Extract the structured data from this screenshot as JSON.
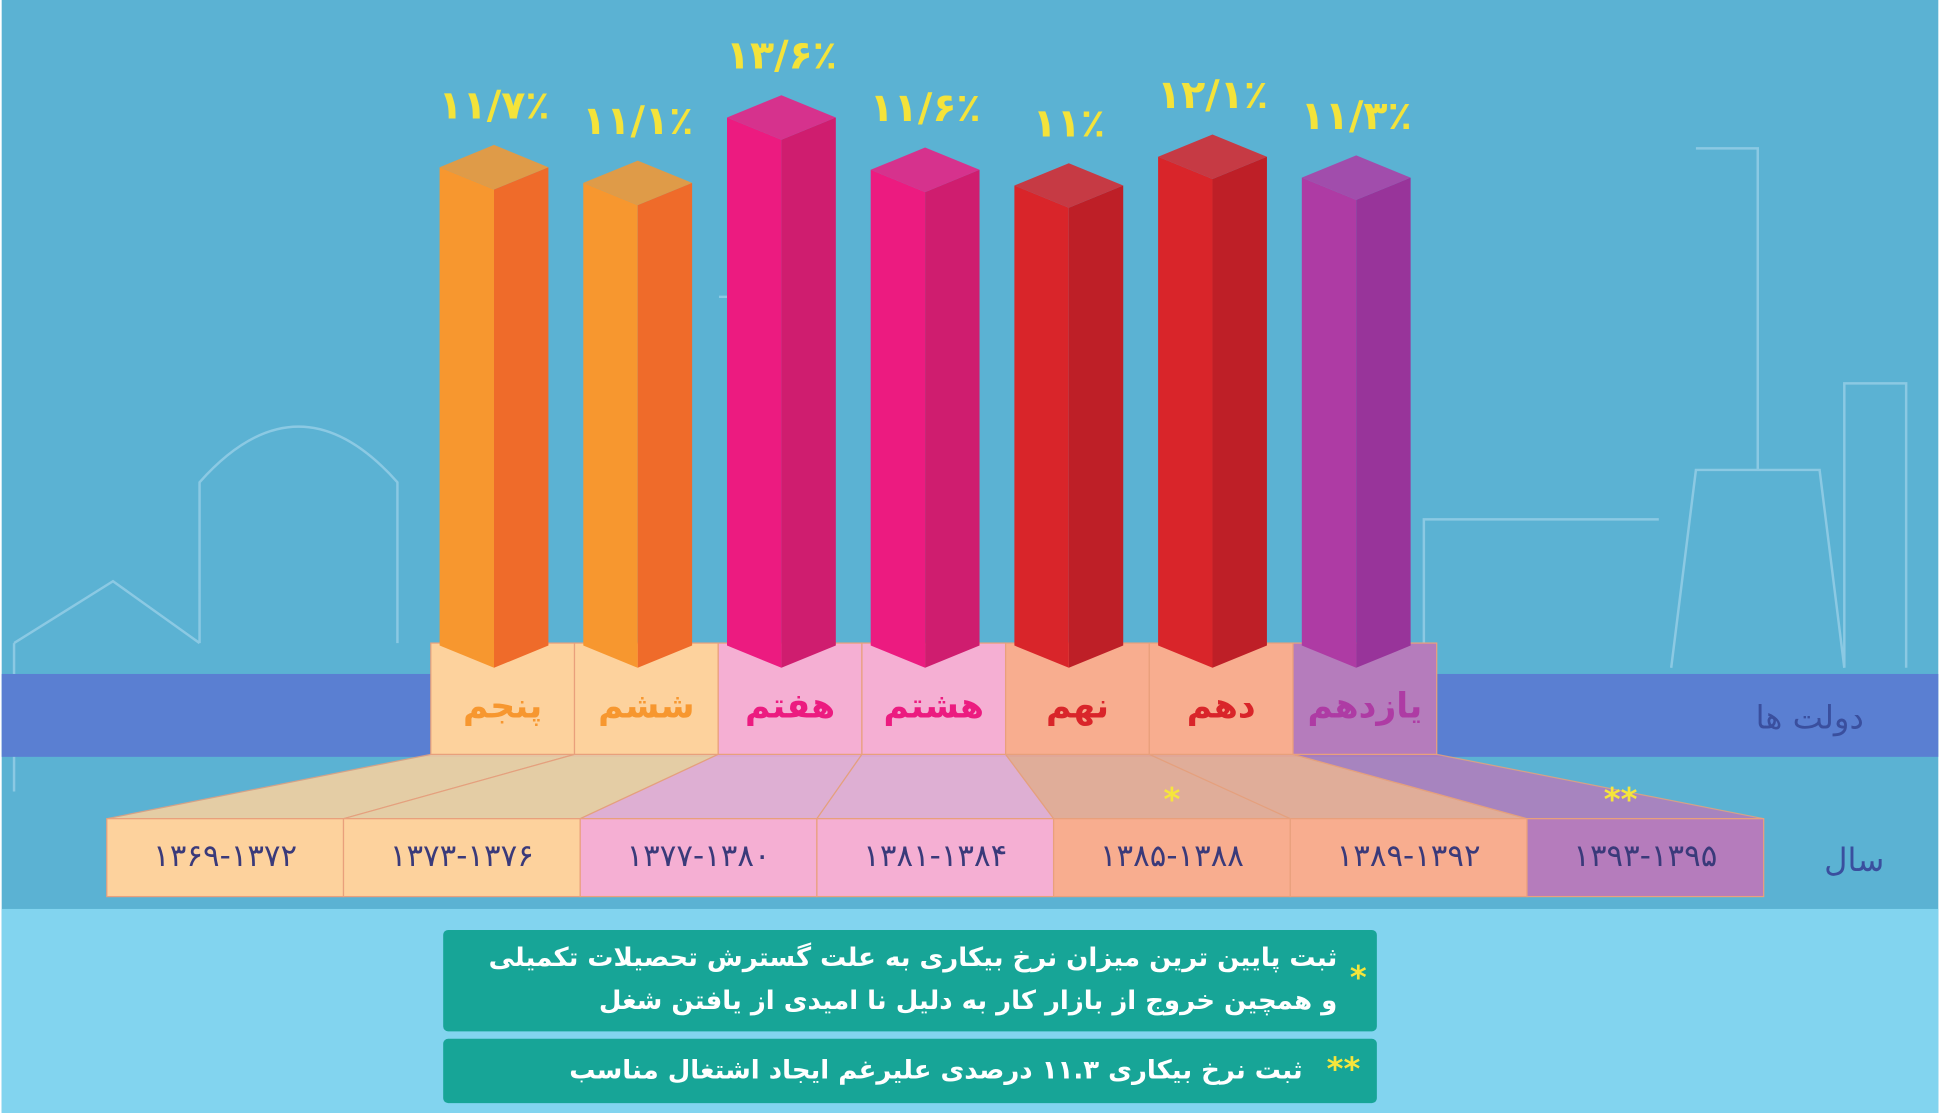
{
  "chart_data": {
    "type": "bar",
    "categories": [
      "پنجم",
      "ششم",
      "هفتم",
      "هشتم",
      "نهم",
      "دهم",
      "یازدهم"
    ],
    "x": [
      "۱۳۶۹-۱۳۷۲",
      "۱۳۷۳-۱۳۷۶",
      "۱۳۷۷-۱۳۸۰",
      "۱۳۸۱-۱۳۸۴",
      "۱۳۸۵-۱۳۸۸",
      "۱۳۸۹-۱۳۹۲",
      "۱۳۹۳-۱۳۹۵"
    ],
    "x_markers": [
      null,
      null,
      null,
      null,
      "*",
      null,
      "**"
    ],
    "values": [
      11.7,
      11.1,
      13.6,
      11.6,
      11,
      12.1,
      11.3
    ],
    "value_labels": [
      "۱۱/۷٪",
      "۱۱/۱٪",
      "۱۳/۶٪",
      "۱۱/۶٪",
      "۱۱٪",
      "۱۲/۱٪",
      "۱۱/۳٪"
    ],
    "colors": [
      "#f7972f",
      "#f7972f",
      "#ec1b80",
      "#ec1b80",
      "#d9252a",
      "#d9252a",
      "#ae3ba4"
    ],
    "dark_colors": [
      "#ef6b2a",
      "#ef6b2a",
      "#cf1d6f",
      "#cf1d6f",
      "#be1f27",
      "#be1f27",
      "#98349a"
    ],
    "light_colors": [
      "#fdd29d",
      "#fdd29d",
      "#f5afd3",
      "#f5afd3",
      "#f8ad8f",
      "#f8ad8f",
      "#b57cbc"
    ],
    "row_labels": [
      "دولت ها",
      "سال"
    ],
    "annotations": [
      {
        "marker": "*",
        "lines": [
          "ثبت پایین ترین میزان نرخ بیکاری به علت گسترش تحصیلات تکمیلی",
          "و همچین خروج از بازار کار به دلیل نا امیدی از یافتن شغل"
        ]
      },
      {
        "marker": "**",
        "lines": [
          "ثبت نرخ بیکاری ۱۱.۳ درصدی علیرغم ایجاد اشتغال مناسب"
        ]
      }
    ]
  }
}
